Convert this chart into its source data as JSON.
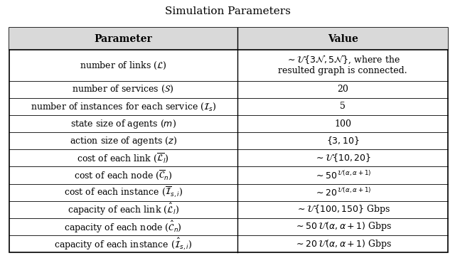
{
  "title": "Simulation Parameters",
  "col_headers": [
    "Parameter",
    "Value"
  ],
  "rows": [
    [
      "number of links ($\\mathcal{L}$)",
      "$\\sim \\mathcal{U}\\{3\\mathcal{N}, 5\\mathcal{N}\\}$, where the\nresulted graph is connected."
    ],
    [
      "number of services ($\\mathcal{S}$)",
      "20"
    ],
    [
      "number of instances for each service ($\\mathcal{I}_s$)",
      "5"
    ],
    [
      "state size of agents ($m$)",
      "100"
    ],
    [
      "action size of agents ($z$)",
      "$\\{3, 10\\}$"
    ],
    [
      "cost of each link ($\\overline{\\mathcal{L}}_l$)",
      "$\\sim \\mathcal{U}\\{10, 20\\}$"
    ],
    [
      "cost of each node ($\\overline{\\mathcal{C}}_n$)",
      "$\\sim 50^{\\,\\mathcal{U}(\\alpha,\\alpha+1)}$"
    ],
    [
      "cost of each instance ($\\overline{\\mathcal{I}}_{s,i}$)",
      "$\\sim 20^{\\,\\mathcal{U}(\\alpha,\\alpha+1)}$"
    ],
    [
      "capacity of each link ($\\hat{\\mathcal{L}}_l$)",
      "$\\sim \\mathcal{U}\\{100, 150\\}$ Gbps"
    ],
    [
      "capacity of each node ($\\hat{\\mathcal{C}}_n$)",
      "$\\sim 50\\,\\mathcal{U}(\\alpha, \\alpha+1)$ Gbps"
    ],
    [
      "capacity of each instance ($\\hat{\\mathcal{I}}_{s,i}$)",
      "$\\sim 20\\,\\mathcal{U}(\\alpha, \\alpha+1)$ Gbps"
    ]
  ],
  "bg_color": "#ffffff",
  "header_bg": "#d9d9d9",
  "border_color": "#000000",
  "title_fontsize": 11,
  "header_fontsize": 10,
  "cell_fontsize": 9
}
